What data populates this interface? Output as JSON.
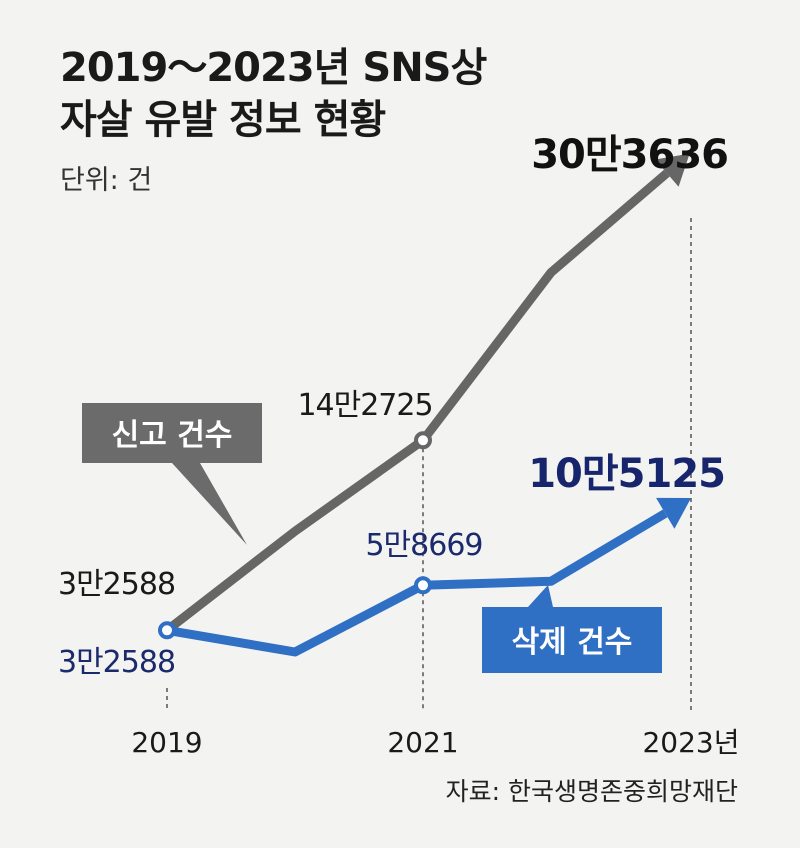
{
  "title_lines": [
    "2019～2023년 SNS상",
    "자살 유발 정보 현황"
  ],
  "unit": "단위: 건",
  "source": "자료: 한국생명존중희망재단",
  "colors": {
    "report": "#666666",
    "delete": "#2f6fc4",
    "delete_label_text": "#1a2a6c",
    "background": "#f3f3f1"
  },
  "chart_data": {
    "type": "line",
    "x": [
      "2019",
      "2020",
      "2021",
      "2022",
      "2023"
    ],
    "xtick_labels": [
      "2019",
      "2021",
      "2023년"
    ],
    "series": [
      {
        "name": "신고 건수",
        "values": [
          32588,
          90000,
          142725,
          240000,
          303636
        ]
      },
      {
        "name": "삭제 건수",
        "values": [
          32588,
          20000,
          58669,
          61000,
          105125
        ]
      }
    ],
    "data_labels": {
      "report": [
        "3만2588",
        "14만2725",
        "30만3636"
      ],
      "delete": [
        "3만2588",
        "5만8669",
        "10만5125"
      ]
    },
    "ylim": [
      0,
      320000
    ]
  }
}
